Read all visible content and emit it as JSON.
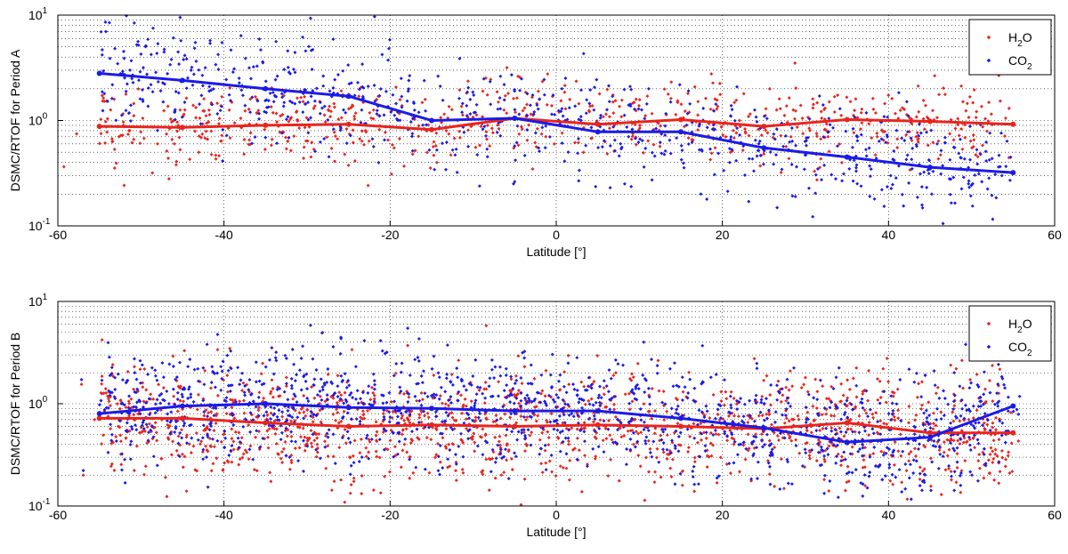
{
  "chart_data": [
    {
      "type": "scatter",
      "id": "A",
      "title": "",
      "xlabel": "Latitude [°]",
      "ylabel": "DSMC/RTOF for Period A",
      "xlim": [
        -60,
        60
      ],
      "ylim": [
        0.1,
        10
      ],
      "yscale": "log",
      "grid": true,
      "legend_position": "top-right",
      "x_ticks": [
        "-60",
        "-40",
        "-20",
        "0",
        "20",
        "40",
        "60"
      ],
      "series": [
        {
          "name": "H2O",
          "label_main": "H",
          "label_sub": "2",
          "label_tail": "O",
          "color": "#e8251d",
          "line_x": [
            -55,
            -45,
            -35,
            -25,
            -15,
            -5,
            5,
            15,
            25,
            35,
            45,
            55
          ],
          "line_y": [
            0.88,
            0.86,
            0.9,
            0.92,
            0.82,
            1.05,
            0.92,
            1.02,
            0.88,
            1.02,
            0.98,
            0.92
          ],
          "scatter_spread": 0.35,
          "scatter_count": 700
        },
        {
          "name": "CO2",
          "label_main": "CO",
          "label_sub": "2",
          "label_tail": "",
          "color": "#1b1be6",
          "line_x": [
            -55,
            -45,
            -35,
            -25,
            -15,
            -5,
            5,
            15,
            25,
            35,
            45,
            55
          ],
          "line_y": [
            2.8,
            2.4,
            2.0,
            1.7,
            1.0,
            1.05,
            0.78,
            0.78,
            0.55,
            0.45,
            0.36,
            0.32
          ],
          "scatter_spread": 0.45,
          "scatter_count": 800
        }
      ]
    },
    {
      "type": "scatter",
      "id": "B",
      "title": "",
      "xlabel": "Latitude [°]",
      "ylabel": "DSMC/RTOF for Period B",
      "xlim": [
        -60,
        60
      ],
      "ylim": [
        0.1,
        10
      ],
      "yscale": "log",
      "grid": true,
      "legend_position": "top-right",
      "x_ticks": [
        "-60",
        "-40",
        "-20",
        "0",
        "20",
        "40",
        "60"
      ],
      "series": [
        {
          "name": "H2O",
          "label_main": "H",
          "label_sub": "2",
          "label_tail": "O",
          "color": "#e8251d",
          "line_x": [
            -55,
            -45,
            -35,
            -25,
            -15,
            -5,
            5,
            15,
            25,
            35,
            45,
            55
          ],
          "line_y": [
            0.72,
            0.72,
            0.65,
            0.6,
            0.62,
            0.6,
            0.62,
            0.6,
            0.57,
            0.65,
            0.52,
            0.52
          ],
          "scatter_spread": 0.5,
          "scatter_count": 1400
        },
        {
          "name": "CO2",
          "label_main": "CO",
          "label_sub": "2",
          "label_tail": "",
          "color": "#1b1be6",
          "line_x": [
            -55,
            -45,
            -35,
            -25,
            -15,
            -5,
            5,
            15,
            25,
            35,
            45,
            55
          ],
          "line_y": [
            0.8,
            0.95,
            1.0,
            0.92,
            0.9,
            0.85,
            0.85,
            0.72,
            0.58,
            0.42,
            0.47,
            0.95
          ],
          "scatter_spread": 0.5,
          "scatter_count": 1400
        }
      ]
    }
  ]
}
